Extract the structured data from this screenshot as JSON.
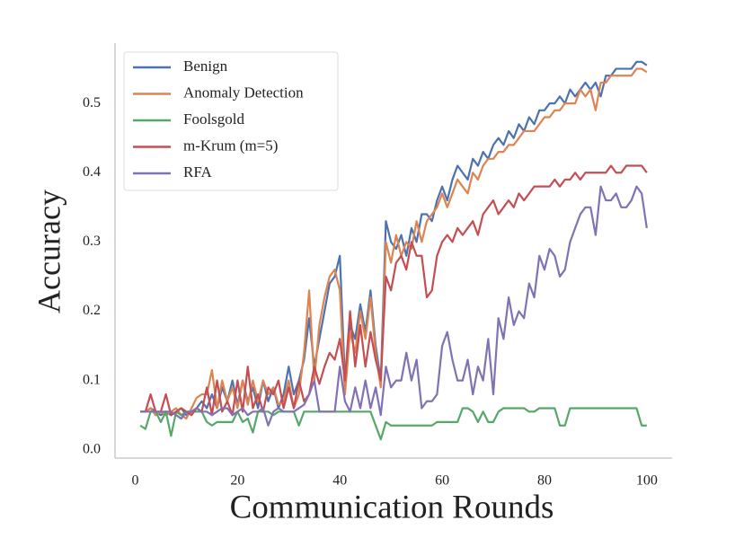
{
  "chart_data": {
    "type": "line",
    "x_label": "Communication Rounds",
    "y_label": "Accuracy",
    "x": [
      1,
      2,
      3,
      4,
      5,
      6,
      7,
      8,
      9,
      10,
      11,
      12,
      13,
      14,
      15,
      16,
      17,
      18,
      19,
      20,
      21,
      22,
      23,
      24,
      25,
      26,
      27,
      28,
      29,
      30,
      31,
      32,
      33,
      34,
      35,
      36,
      37,
      38,
      39,
      40,
      41,
      42,
      43,
      44,
      45,
      46,
      47,
      48,
      49,
      50,
      51,
      52,
      53,
      54,
      55,
      56,
      57,
      58,
      59,
      60,
      61,
      62,
      63,
      64,
      65,
      66,
      67,
      68,
      69,
      70,
      71,
      72,
      73,
      74,
      75,
      76,
      77,
      78,
      79,
      80,
      81,
      82,
      83,
      84,
      85,
      86,
      87,
      88,
      89,
      90,
      91,
      92,
      93,
      94,
      95,
      96,
      97,
      98,
      99,
      100
    ],
    "xlim": [
      -3.95,
      104.95
    ],
    "xticks": [
      0,
      20,
      40,
      60,
      80,
      100
    ],
    "ylim": [
      -0.012,
      0.587
    ],
    "yticks": [
      {
        "value": 0,
        "label": "0.0"
      },
      0.1,
      0.2,
      0.3,
      0.4,
      0.5
    ],
    "legend": "upper left",
    "series": [
      {
        "name": "Benign",
        "color": "#4c72b0",
        "values": [
          0.055,
          0.055,
          0.06,
          0.055,
          0.05,
          0.055,
          0.05,
          0.055,
          0.06,
          0.05,
          0.055,
          0.06,
          0.07,
          0.06,
          0.08,
          0.06,
          0.09,
          0.07,
          0.1,
          0.065,
          0.1,
          0.07,
          0.09,
          0.06,
          0.1,
          0.07,
          0.09,
          0.06,
          0.08,
          0.12,
          0.08,
          0.1,
          0.13,
          0.19,
          0.12,
          0.16,
          0.2,
          0.24,
          0.25,
          0.28,
          0.1,
          0.18,
          0.16,
          0.21,
          0.17,
          0.23,
          0.15,
          0.1,
          0.33,
          0.3,
          0.29,
          0.31,
          0.28,
          0.32,
          0.3,
          0.34,
          0.34,
          0.33,
          0.36,
          0.38,
          0.36,
          0.39,
          0.41,
          0.4,
          0.39,
          0.42,
          0.41,
          0.43,
          0.42,
          0.44,
          0.45,
          0.44,
          0.46,
          0.45,
          0.47,
          0.46,
          0.48,
          0.47,
          0.49,
          0.49,
          0.5,
          0.5,
          0.51,
          0.5,
          0.52,
          0.51,
          0.52,
          0.53,
          0.52,
          0.53,
          0.51,
          0.54,
          0.54,
          0.55,
          0.55,
          0.55,
          0.55,
          0.56,
          0.56,
          0.555
        ]
      },
      {
        "name": "Anomaly Detection",
        "color": "#dd8452",
        "values": [
          0.055,
          0.055,
          0.06,
          0.05,
          0.055,
          0.05,
          0.055,
          0.06,
          0.05,
          0.045,
          0.06,
          0.075,
          0.08,
          0.08,
          0.115,
          0.06,
          0.1,
          0.07,
          0.09,
          0.06,
          0.1,
          0.065,
          0.1,
          0.07,
          0.1,
          0.08,
          0.09,
          0.065,
          0.07,
          0.1,
          0.06,
          0.08,
          0.14,
          0.23,
          0.1,
          0.18,
          0.22,
          0.25,
          0.26,
          0.23,
          0.08,
          0.17,
          0.14,
          0.2,
          0.16,
          0.22,
          0.14,
          0.09,
          0.3,
          0.27,
          0.31,
          0.28,
          0.3,
          0.29,
          0.33,
          0.3,
          0.33,
          0.34,
          0.35,
          0.37,
          0.35,
          0.37,
          0.39,
          0.38,
          0.37,
          0.4,
          0.39,
          0.41,
          0.42,
          0.42,
          0.43,
          0.43,
          0.44,
          0.44,
          0.45,
          0.46,
          0.46,
          0.46,
          0.47,
          0.48,
          0.48,
          0.49,
          0.49,
          0.5,
          0.5,
          0.5,
          0.52,
          0.51,
          0.52,
          0.49,
          0.53,
          0.53,
          0.54,
          0.54,
          0.54,
          0.54,
          0.54,
          0.55,
          0.55,
          0.545
        ]
      },
      {
        "name": "Foolsgold",
        "color": "#55a868",
        "values": [
          0.035,
          0.03,
          0.055,
          0.055,
          0.04,
          0.055,
          0.02,
          0.055,
          0.05,
          0.055,
          0.055,
          0.055,
          0.055,
          0.04,
          0.035,
          0.04,
          0.04,
          0.04,
          0.04,
          0.055,
          0.04,
          0.045,
          0.025,
          0.055,
          0.055,
          0.055,
          0.05,
          0.055,
          0.055,
          0.055,
          0.055,
          0.035,
          0.055,
          0.055,
          0.055,
          0.055,
          0.055,
          0.055,
          0.055,
          0.055,
          0.055,
          0.055,
          0.055,
          0.055,
          0.055,
          0.055,
          0.035,
          0.015,
          0.04,
          0.035,
          0.035,
          0.035,
          0.035,
          0.035,
          0.035,
          0.035,
          0.035,
          0.035,
          0.04,
          0.04,
          0.04,
          0.04,
          0.04,
          0.06,
          0.06,
          0.055,
          0.04,
          0.055,
          0.04,
          0.04,
          0.055,
          0.06,
          0.06,
          0.06,
          0.06,
          0.06,
          0.055,
          0.055,
          0.06,
          0.06,
          0.06,
          0.06,
          0.035,
          0.035,
          0.06,
          0.06,
          0.06,
          0.06,
          0.06,
          0.06,
          0.06,
          0.06,
          0.06,
          0.06,
          0.06,
          0.06,
          0.06,
          0.06,
          0.035,
          0.035
        ]
      },
      {
        "name": "m-Krum (m=5)",
        "color": "#c44e52",
        "values": [
          0.055,
          0.055,
          0.08,
          0.055,
          0.055,
          0.08,
          0.05,
          0.055,
          0.06,
          0.055,
          0.05,
          0.06,
          0.055,
          0.09,
          0.05,
          0.1,
          0.055,
          0.07,
          0.05,
          0.1,
          0.055,
          0.12,
          0.06,
          0.08,
          0.055,
          0.09,
          0.08,
          0.1,
          0.06,
          0.09,
          0.06,
          0.1,
          0.07,
          0.08,
          0.12,
          0.095,
          0.12,
          0.14,
          0.13,
          0.16,
          0.1,
          0.2,
          0.12,
          0.18,
          0.12,
          0.17,
          0.13,
          0.1,
          0.25,
          0.23,
          0.27,
          0.28,
          0.26,
          0.3,
          0.28,
          0.28,
          0.22,
          0.23,
          0.28,
          0.3,
          0.31,
          0.3,
          0.32,
          0.31,
          0.32,
          0.33,
          0.31,
          0.34,
          0.35,
          0.36,
          0.34,
          0.35,
          0.36,
          0.35,
          0.37,
          0.36,
          0.37,
          0.38,
          0.38,
          0.38,
          0.38,
          0.39,
          0.38,
          0.39,
          0.39,
          0.4,
          0.39,
          0.4,
          0.4,
          0.4,
          0.4,
          0.4,
          0.41,
          0.4,
          0.4,
          0.41,
          0.41,
          0.41,
          0.41,
          0.4
        ]
      },
      {
        "name": "RFA",
        "color": "#8172b3",
        "values": [
          0.055,
          0.055,
          0.055,
          0.055,
          0.055,
          0.055,
          0.055,
          0.05,
          0.045,
          0.055,
          0.055,
          0.06,
          0.055,
          0.055,
          0.05,
          0.055,
          0.06,
          0.06,
          0.05,
          0.055,
          0.06,
          0.05,
          0.055,
          0.055,
          0.06,
          0.035,
          0.055,
          0.06,
          0.055,
          0.055,
          0.055,
          0.06,
          0.065,
          0.08,
          0.1,
          0.055,
          0.055,
          0.055,
          0.055,
          0.12,
          0.07,
          0.055,
          0.09,
          0.06,
          0.1,
          0.06,
          0.09,
          0.05,
          0.12,
          0.09,
          0.1,
          0.1,
          0.14,
          0.1,
          0.13,
          0.06,
          0.07,
          0.07,
          0.08,
          0.15,
          0.17,
          0.13,
          0.1,
          0.1,
          0.13,
          0.08,
          0.12,
          0.1,
          0.16,
          0.08,
          0.19,
          0.16,
          0.22,
          0.18,
          0.2,
          0.19,
          0.24,
          0.22,
          0.28,
          0.26,
          0.29,
          0.28,
          0.25,
          0.26,
          0.3,
          0.32,
          0.34,
          0.35,
          0.35,
          0.31,
          0.38,
          0.36,
          0.36,
          0.37,
          0.35,
          0.35,
          0.36,
          0.38,
          0.37,
          0.32
        ]
      }
    ]
  }
}
